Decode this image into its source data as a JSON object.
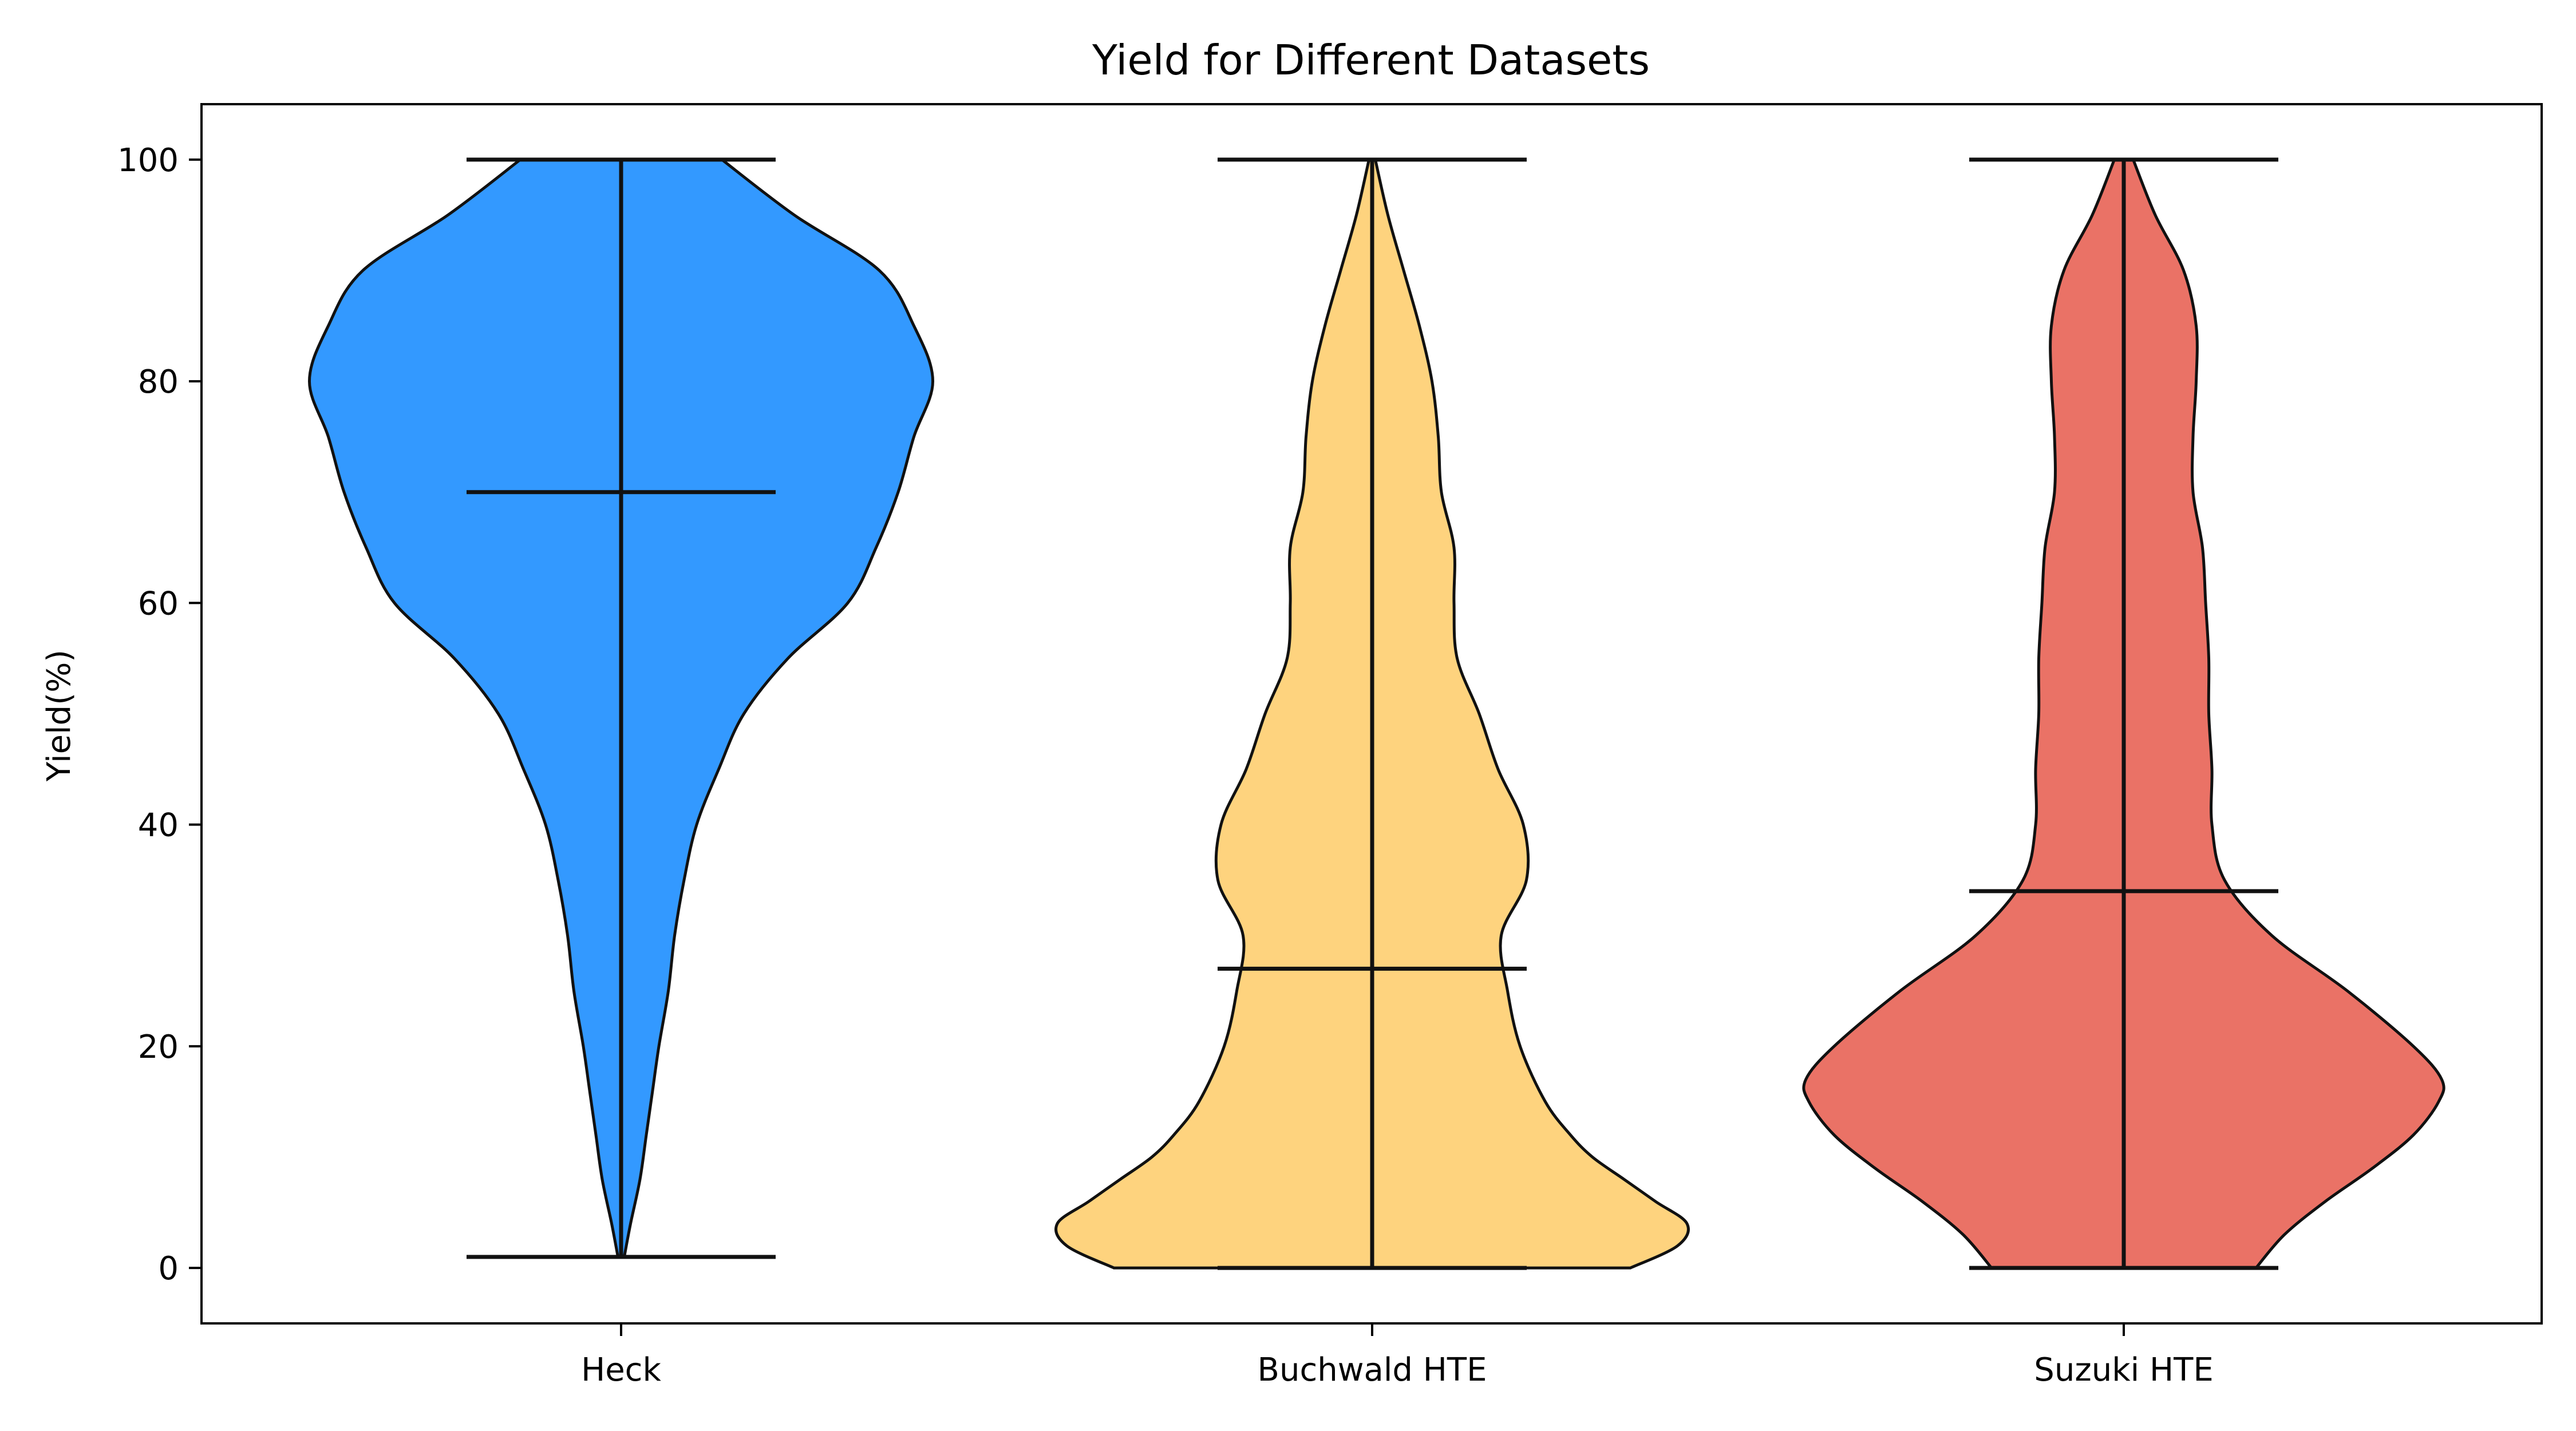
{
  "chart_data": {
    "type": "violin",
    "title": "Yield for Different Datasets",
    "xlabel": "",
    "ylabel": "Yield(%)",
    "ylim": [
      -5,
      105
    ],
    "yticks": [
      0,
      20,
      40,
      60,
      80,
      100
    ],
    "grid": false,
    "categories": [
      "Heck",
      "Buchwald HTE",
      "Suzuki HTE"
    ],
    "series": [
      {
        "category": "Heck",
        "color": "#3399ff",
        "min": 1,
        "max": 100,
        "median": 70,
        "density_profile": [
          [
            1,
            0.01
          ],
          [
            4,
            0.03
          ],
          [
            8,
            0.06
          ],
          [
            12,
            0.08
          ],
          [
            16,
            0.1
          ],
          [
            20,
            0.12
          ],
          [
            25,
            0.15
          ],
          [
            30,
            0.17
          ],
          [
            35,
            0.2
          ],
          [
            40,
            0.24
          ],
          [
            45,
            0.31
          ],
          [
            50,
            0.39
          ],
          [
            55,
            0.53
          ],
          [
            60,
            0.72
          ],
          [
            65,
            0.81
          ],
          [
            70,
            0.88
          ],
          [
            75,
            0.93
          ],
          [
            80,
            0.99
          ],
          [
            85,
            0.93
          ],
          [
            90,
            0.82
          ],
          [
            95,
            0.55
          ],
          [
            100,
            0.32
          ]
        ]
      },
      {
        "category": "Buchwald HTE",
        "color": "#fed37e",
        "min": 0,
        "max": 100,
        "median": 27,
        "density_profile": [
          [
            0,
            0.82
          ],
          [
            2,
            0.97
          ],
          [
            4,
            1.0
          ],
          [
            6,
            0.9
          ],
          [
            8,
            0.8
          ],
          [
            10,
            0.7
          ],
          [
            12,
            0.63
          ],
          [
            15,
            0.55
          ],
          [
            20,
            0.47
          ],
          [
            25,
            0.43
          ],
          [
            30,
            0.41
          ],
          [
            35,
            0.49
          ],
          [
            40,
            0.48
          ],
          [
            45,
            0.4
          ],
          [
            50,
            0.34
          ],
          [
            55,
            0.27
          ],
          [
            60,
            0.26
          ],
          [
            65,
            0.26
          ],
          [
            70,
            0.22
          ],
          [
            75,
            0.21
          ],
          [
            80,
            0.19
          ],
          [
            85,
            0.15
          ],
          [
            90,
            0.1
          ],
          [
            95,
            0.05
          ],
          [
            100,
            0.01
          ]
        ]
      },
      {
        "category": "Suzuki HTE",
        "color": "#ea7266",
        "min": 0,
        "max": 100,
        "median": 34,
        "density_profile": [
          [
            0,
            0.42
          ],
          [
            3,
            0.51
          ],
          [
            6,
            0.64
          ],
          [
            9,
            0.79
          ],
          [
            12,
            0.92
          ],
          [
            15,
            1.0
          ],
          [
            17,
            1.01
          ],
          [
            20,
            0.92
          ],
          [
            25,
            0.71
          ],
          [
            30,
            0.47
          ],
          [
            35,
            0.32
          ],
          [
            40,
            0.28
          ],
          [
            45,
            0.28
          ],
          [
            50,
            0.27
          ],
          [
            55,
            0.27
          ],
          [
            60,
            0.26
          ],
          [
            65,
            0.25
          ],
          [
            70,
            0.22
          ],
          [
            75,
            0.22
          ],
          [
            80,
            0.23
          ],
          [
            85,
            0.23
          ],
          [
            90,
            0.19
          ],
          [
            95,
            0.1
          ],
          [
            100,
            0.03
          ]
        ]
      }
    ]
  }
}
